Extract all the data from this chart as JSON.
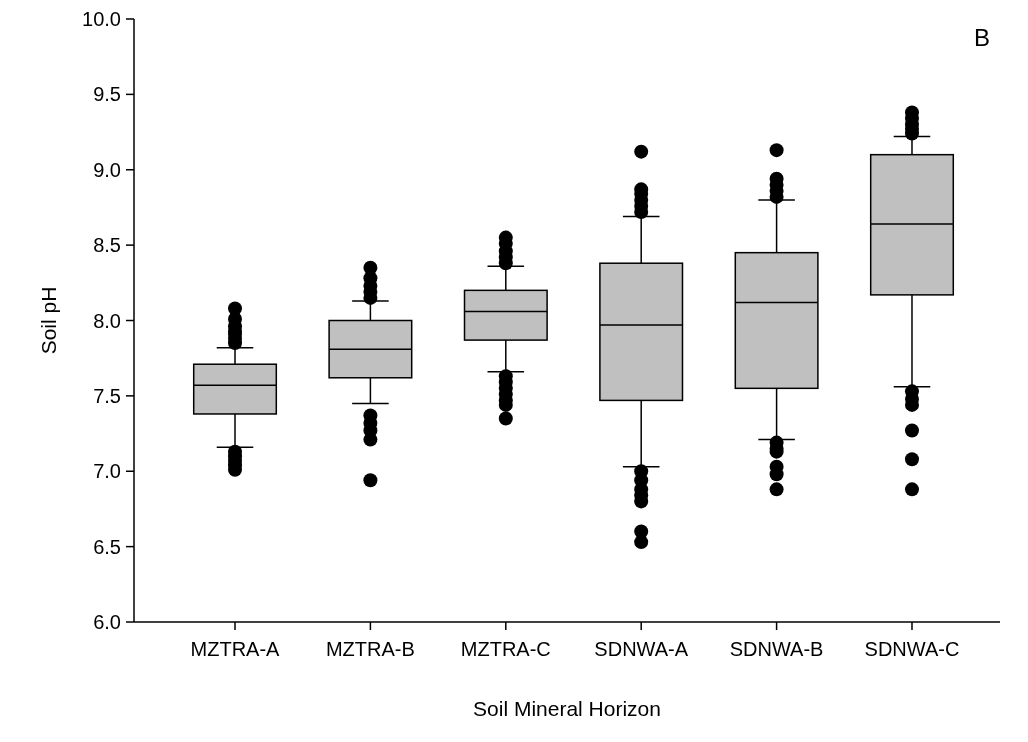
{
  "chart_data": {
    "type": "box",
    "xlabel": "Soil Mineral Horizon",
    "ylabel": "Soil pH",
    "annotations": [
      "B"
    ],
    "categories": [
      "MZTRA-A",
      "MZTRA-B",
      "MZTRA-C",
      "SDNWA-A",
      "SDNWA-B",
      "SDNWA-C"
    ],
    "color": "#c0c0c0",
    "boxes": [
      {
        "low": 7.16,
        "q1": 7.38,
        "median": 7.57,
        "q3": 7.71,
        "high": 7.82,
        "outliers": [
          7.85,
          7.88,
          7.91,
          7.93,
          7.96,
          8.01,
          8.08,
          7.13,
          7.1,
          7.07,
          7.04,
          7.01
        ]
      },
      {
        "low": 7.45,
        "q1": 7.62,
        "median": 7.81,
        "q3": 8.0,
        "high": 8.13,
        "outliers": [
          8.15,
          8.19,
          8.23,
          8.28,
          8.35,
          7.37,
          7.32,
          7.27,
          7.21,
          6.94
        ]
      },
      {
        "low": 7.66,
        "q1": 7.87,
        "median": 8.06,
        "q3": 8.2,
        "high": 8.36,
        "outliers": [
          8.38,
          8.42,
          8.46,
          8.51,
          8.55,
          7.63,
          7.59,
          7.55,
          7.51,
          7.47,
          7.44,
          7.35
        ]
      },
      {
        "low": 7.03,
        "q1": 7.47,
        "median": 7.97,
        "q3": 8.38,
        "high": 8.69,
        "outliers": [
          8.72,
          8.76,
          8.8,
          8.84,
          8.87,
          9.12,
          7.0,
          6.94,
          6.88,
          6.84,
          6.8,
          6.6,
          6.53
        ]
      },
      {
        "low": 7.21,
        "q1": 7.55,
        "median": 8.12,
        "q3": 8.45,
        "high": 8.8,
        "outliers": [
          8.82,
          8.86,
          8.9,
          8.94,
          9.13,
          7.19,
          7.15,
          7.13,
          7.03,
          6.98,
          6.88
        ]
      },
      {
        "low": 7.56,
        "q1": 8.17,
        "median": 8.64,
        "q3": 9.1,
        "high": 9.22,
        "outliers": [
          9.24,
          9.27,
          9.3,
          9.34,
          9.38,
          7.53,
          7.48,
          7.44,
          7.27,
          7.08,
          6.88
        ]
      }
    ],
    "ylim": [
      6.0,
      10.0
    ],
    "yticks": [
      {
        "value": 6,
        "label": "6.0"
      },
      {
        "value": 6.5,
        "label": "6.5"
      },
      {
        "value": 7,
        "label": "7.0"
      },
      {
        "value": 7.5,
        "label": "7.5"
      },
      {
        "value": 8,
        "label": "8.0"
      },
      {
        "value": 8.5,
        "label": "8.5"
      },
      {
        "value": 9,
        "label": "9.0"
      },
      {
        "value": 9.5,
        "label": "9.5"
      },
      {
        "value": 10,
        "label": "10.0"
      }
    ],
    "grid": false,
    "marker": "circle"
  }
}
